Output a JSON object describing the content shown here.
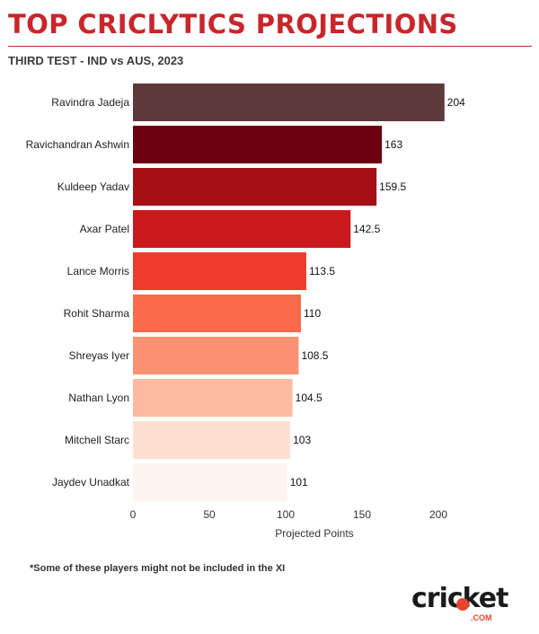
{
  "header": {
    "title": "TOP CRICLYTICS PROJECTIONS",
    "subtitle": "THIRD TEST - IND vs AUS, 2023"
  },
  "footnote": "*Some of these players might not be included in the XI",
  "logo": {
    "word": "cricket",
    "suffix": ".COM"
  },
  "colors": {
    "accent": "#c8262c",
    "logo_accent": "#e8462a"
  },
  "chart_data": {
    "type": "bar",
    "orientation": "horizontal",
    "categories": [
      "Ravindra Jadeja",
      "Ravichandran Ashwin",
      "Kuldeep Yadav",
      "Axar Patel",
      "Lance Morris",
      "Rohit Sharma",
      "Shreyas Iyer",
      "Nathan Lyon",
      "Mitchell Starc",
      "Jaydev Unadkat"
    ],
    "values": [
      204,
      163,
      159.5,
      142.5,
      113.5,
      110,
      108.5,
      104.5,
      103,
      101
    ],
    "value_labels": [
      "204",
      "163",
      "159.5",
      "142.5",
      "113.5",
      "110",
      "108.5",
      "104.5",
      "103",
      "101"
    ],
    "bar_colors": [
      "#5c3a3a",
      "#6b0010",
      "#a50f15",
      "#cb181d",
      "#ef3b2c",
      "#fb6a4a",
      "#fc9272",
      "#fcbba1",
      "#fee0d2",
      "#fff5f0"
    ],
    "xlabel": "Projected Points",
    "ylabel": "",
    "xlim": [
      0,
      225
    ],
    "xticks": [
      0,
      50,
      100,
      150,
      200
    ],
    "grid": false,
    "legend": "none"
  }
}
